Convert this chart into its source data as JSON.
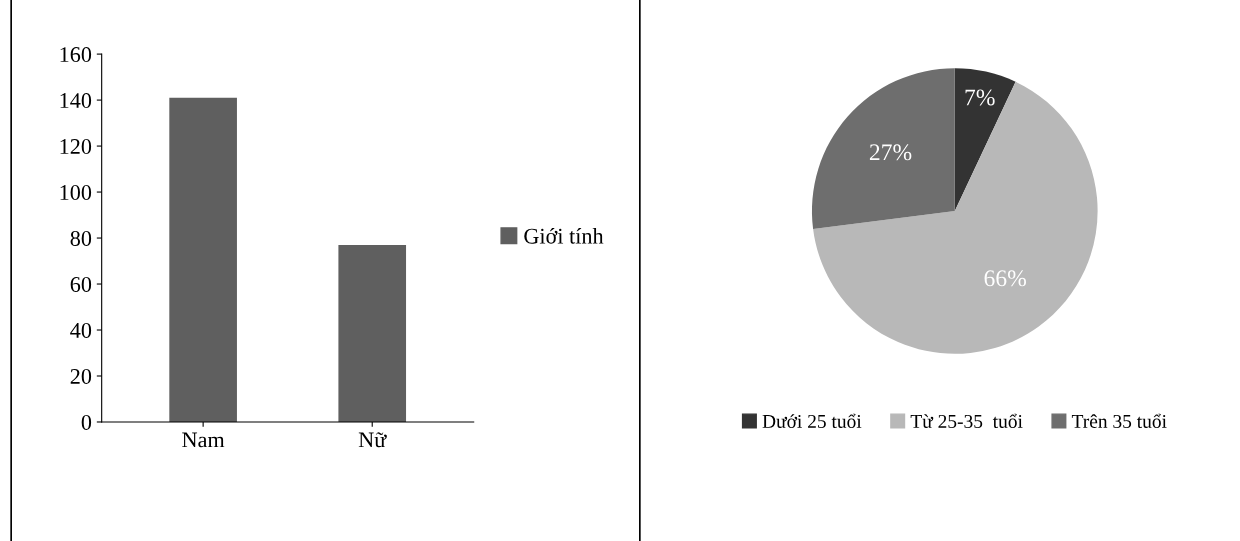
{
  "chart_data": [
    {
      "type": "bar",
      "categories": [
        "Nam",
        "Nữ"
      ],
      "series": [
        {
          "name": "Giới tính",
          "color": "#5f5f5f",
          "values": [
            141,
            77
          ]
        }
      ],
      "ylim": [
        0,
        160
      ],
      "yticks": [
        0,
        20,
        40,
        60,
        80,
        100,
        120,
        140,
        160
      ],
      "grid": false,
      "legend": "right"
    },
    {
      "type": "pie",
      "categories": [
        "Dưới 25 tuổi",
        "Từ 25-35  tuổi",
        "Trên 35 tuổi"
      ],
      "values": [
        7,
        66,
        27
      ],
      "colors": [
        "#333333",
        "#b8b8b8",
        "#6e6e6e"
      ],
      "value_labels": [
        "7%",
        "66%",
        "27%"
      ],
      "legend": "bottom"
    }
  ]
}
